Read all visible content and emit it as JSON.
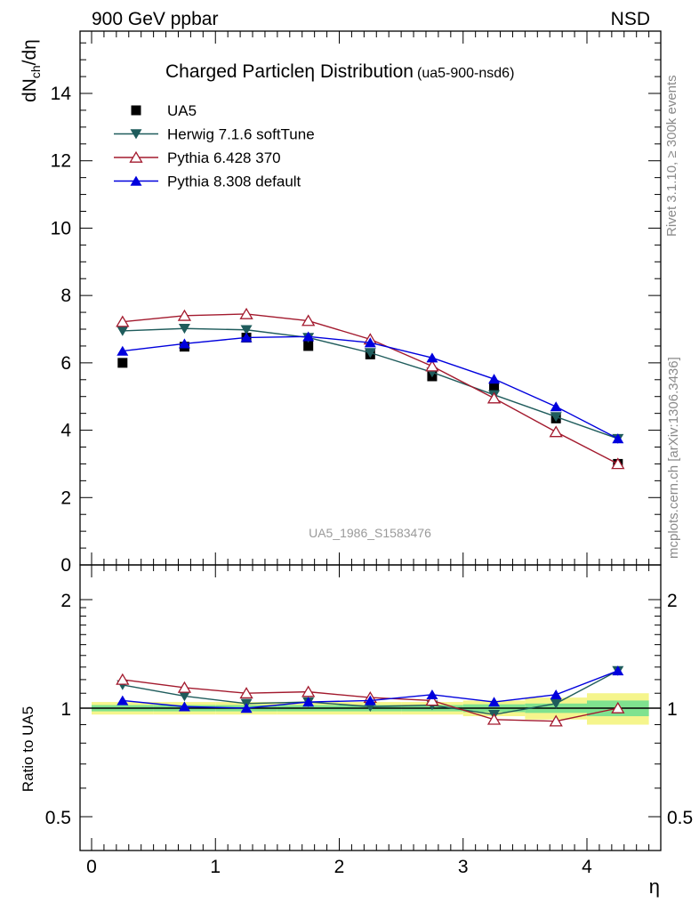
{
  "header": {
    "left": "900 GeV ppbar",
    "right": "NSD",
    "side_text_1": "Rivet 3.1.10, ≥ 300k events",
    "side_text_2": "mcplots.cern.ch [arXiv:1306.3436]"
  },
  "main_panel": {
    "title": "Charged Particle",
    "title_eta": "η",
    "title_2": " Distribution",
    "title_suffix": "(ua5-900-nsd6)",
    "ylabel_main": "dN",
    "ylabel_sub": "ch",
    "ylabel_end": "/dη",
    "watermark": "UA5_1986_S1583476"
  },
  "ratio_panel": {
    "ylabel": "Ratio to UA5"
  },
  "xaxis_label": "η",
  "colors": {
    "data": "#000000",
    "herwig": "#1f5c5c",
    "pythia6": "#a31a2e",
    "pythia8": "#0000dd",
    "band_inner": "#7fe28f",
    "band_outer": "#f5f58c"
  },
  "legend": [
    {
      "label": "UA5",
      "key": "data"
    },
    {
      "label": "Herwig 7.1.6 softTune",
      "key": "herwig"
    },
    {
      "label": "Pythia 6.428 370",
      "key": "pythia6"
    },
    {
      "label": "Pythia 8.308 default",
      "key": "pythia8"
    }
  ],
  "chart_data": {
    "type": "scatter",
    "x": [
      0.25,
      0.75,
      1.25,
      1.75,
      2.25,
      2.75,
      3.25,
      3.75,
      4.25
    ],
    "xlim": [
      -0.1,
      4.6
    ],
    "xticks": [
      0,
      1,
      2,
      3,
      4
    ],
    "main": {
      "ylim": [
        0,
        16
      ],
      "yticks": [
        0,
        2,
        4,
        6,
        8,
        10,
        12,
        14
      ],
      "series": [
        {
          "name": "UA5",
          "key": "data",
          "marker": "square",
          "values": [
            6.0,
            6.48,
            6.75,
            6.5,
            6.25,
            5.6,
            5.3,
            4.35,
            3.0
          ]
        },
        {
          "name": "Herwig 7.1.6 softTune",
          "key": "herwig",
          "marker": "triangle-down",
          "values": [
            6.95,
            7.02,
            6.98,
            6.75,
            6.3,
            5.72,
            5.05,
            4.4,
            3.75
          ]
        },
        {
          "name": "Pythia 6.428 370",
          "key": "pythia6",
          "marker": "triangle-open",
          "values": [
            7.22,
            7.4,
            7.45,
            7.25,
            6.7,
            5.9,
            4.95,
            3.95,
            3.0
          ]
        },
        {
          "name": "Pythia 8.308 default",
          "key": "pythia8",
          "marker": "triangle-up",
          "values": [
            6.35,
            6.57,
            6.75,
            6.78,
            6.6,
            6.15,
            5.52,
            4.7,
            3.75
          ]
        }
      ]
    },
    "ratio": {
      "ylim": [
        0.4,
        2.3
      ],
      "yticks": [
        0.5,
        1,
        2
      ],
      "ytick_labels": [
        "0.5",
        "1",
        "2"
      ],
      "band": [
        {
          "x0": -0.0,
          "x1": 0.5,
          "inner": 0.02,
          "outer": 0.04
        },
        {
          "x0": 0.5,
          "x1": 1.0,
          "inner": 0.02,
          "outer": 0.04
        },
        {
          "x0": 1.0,
          "x1": 1.5,
          "inner": 0.02,
          "outer": 0.04
        },
        {
          "x0": 1.5,
          "x1": 2.0,
          "inner": 0.02,
          "outer": 0.04
        },
        {
          "x0": 2.0,
          "x1": 2.5,
          "inner": 0.02,
          "outer": 0.04
        },
        {
          "x0": 2.5,
          "x1": 3.0,
          "inner": 0.02,
          "outer": 0.04
        },
        {
          "x0": 3.0,
          "x1": 3.5,
          "inner": 0.025,
          "outer": 0.05
        },
        {
          "x0": 3.5,
          "x1": 4.0,
          "inner": 0.03,
          "outer": 0.07
        },
        {
          "x0": 4.0,
          "x1": 4.5,
          "inner": 0.05,
          "outer": 0.1
        }
      ],
      "series": [
        {
          "name": "Herwig 7.1.6 softTune",
          "key": "herwig",
          "marker": "triangle-down",
          "values": [
            1.16,
            1.08,
            1.03,
            1.04,
            1.01,
            1.02,
            0.96,
            1.03,
            1.27
          ]
        },
        {
          "name": "Pythia 6.428 370",
          "key": "pythia6",
          "marker": "triangle-open",
          "values": [
            1.2,
            1.14,
            1.1,
            1.11,
            1.07,
            1.05,
            0.93,
            0.92,
            1.0
          ]
        },
        {
          "name": "Pythia 8.308 default",
          "key": "pythia8",
          "marker": "triangle-up",
          "values": [
            1.05,
            1.01,
            1.0,
            1.04,
            1.05,
            1.09,
            1.04,
            1.09,
            1.27
          ]
        }
      ]
    }
  }
}
